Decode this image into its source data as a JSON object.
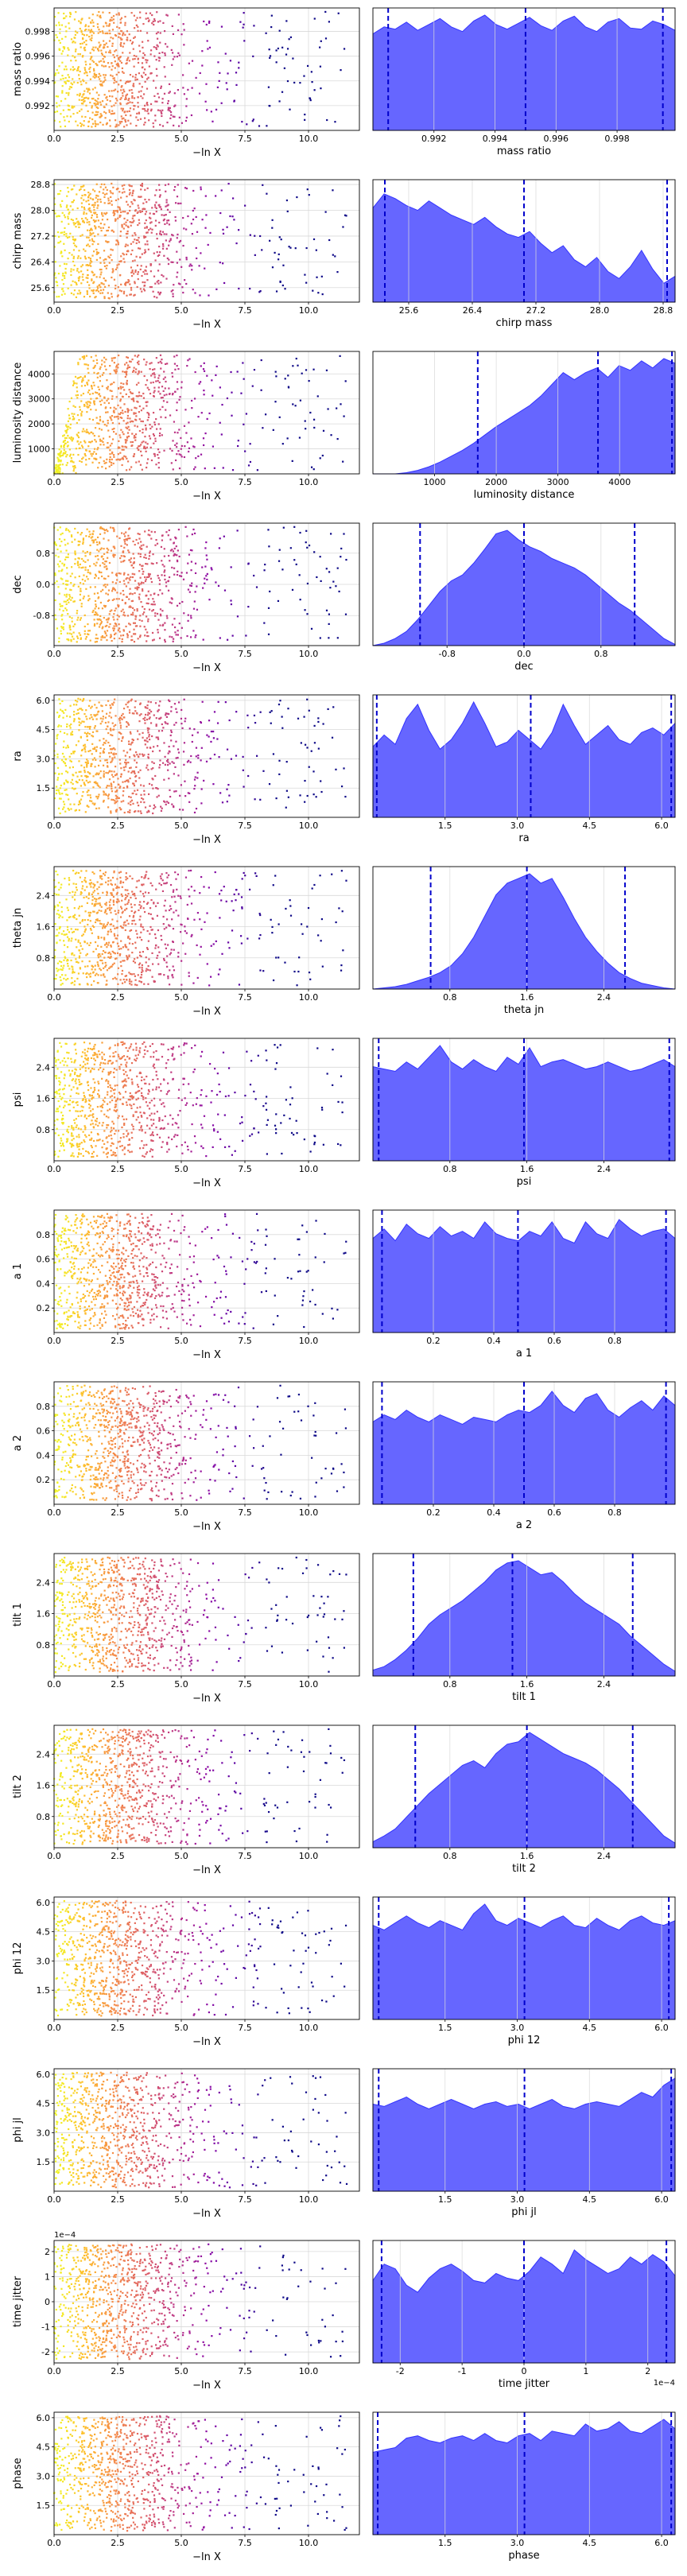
{
  "figure": {
    "scatter_xlabel": "−ln X",
    "colors": {
      "kde_fill": "#5555ff",
      "kde_edge": "#3333ff",
      "quantile_line": "#0000cc",
      "grid": "#d9d9d9"
    },
    "colormap": "plasma",
    "scatter_xlim": [
      0,
      12
    ],
    "scatter_xticks": [
      "0.0",
      "2.5",
      "5.0",
      "7.5",
      "10.0"
    ]
  },
  "chart_data": [
    {
      "type": "scatter+area",
      "param": "mass ratio",
      "ylim": [
        0.99,
        0.9999
      ],
      "yticks": [
        "0.992",
        "0.994",
        "0.996",
        "0.998"
      ],
      "xticks_kde": [
        "0.992",
        "0.994",
        "0.996",
        "0.998"
      ],
      "quantiles": [
        0.9905,
        0.995,
        0.9995
      ],
      "kde": [
        0.82,
        0.88,
        0.86,
        0.92,
        0.85,
        0.9,
        0.95,
        0.88,
        0.84,
        0.93,
        0.98,
        0.9,
        0.86,
        0.91,
        0.96,
        0.89,
        0.85,
        0.93,
        0.97,
        0.88,
        0.84,
        0.92,
        0.95,
        0.87,
        0.86,
        0.93,
        0.9,
        0.85
      ]
    },
    {
      "type": "scatter+area",
      "param": "chirp mass",
      "ylim": [
        25.15,
        28.95
      ],
      "yticks": [
        "25.6",
        "26.4",
        "27.2",
        "28.0",
        "28.8"
      ],
      "xticks_kde": [
        "25.6",
        "26.4",
        "27.2",
        "28.0",
        "28.8"
      ],
      "quantiles": [
        25.3,
        27.05,
        28.85
      ],
      "kde": [
        0.8,
        0.92,
        0.88,
        0.82,
        0.78,
        0.86,
        0.8,
        0.74,
        0.7,
        0.66,
        0.72,
        0.64,
        0.58,
        0.55,
        0.6,
        0.5,
        0.42,
        0.48,
        0.36,
        0.3,
        0.38,
        0.26,
        0.2,
        0.3,
        0.44,
        0.28,
        0.16,
        0.22
      ]
    },
    {
      "type": "scatter+area",
      "param": "luminosity distance",
      "ylim": [
        0,
        4900
      ],
      "yticks": [
        "1000",
        "2000",
        "3000",
        "4000"
      ],
      "xticks_kde": [
        "1000",
        "2000",
        "3000",
        "4000"
      ],
      "quantiles": [
        1700,
        3650,
        4850
      ],
      "kde": [
        0.0,
        0.0,
        0.0,
        0.01,
        0.03,
        0.06,
        0.1,
        0.15,
        0.2,
        0.26,
        0.33,
        0.4,
        0.46,
        0.52,
        0.58,
        0.66,
        0.76,
        0.86,
        0.8,
        0.86,
        0.9,
        0.82,
        0.92,
        0.88,
        0.96,
        0.9,
        0.98,
        0.94
      ]
    },
    {
      "type": "scatter+area",
      "param": "dec",
      "ylim": [
        -1.57,
        1.57
      ],
      "yticks": [
        "-0.8",
        "0.0",
        "0.8"
      ],
      "xticks_kde": [
        "-0.8",
        "0.0",
        "0.8"
      ],
      "quantiles": [
        -1.08,
        0.0,
        1.15
      ],
      "kde": [
        0.0,
        0.02,
        0.06,
        0.12,
        0.22,
        0.34,
        0.46,
        0.55,
        0.6,
        0.7,
        0.82,
        0.95,
        0.98,
        0.9,
        0.84,
        0.8,
        0.74,
        0.7,
        0.66,
        0.6,
        0.52,
        0.44,
        0.36,
        0.3,
        0.22,
        0.14,
        0.06,
        0.01
      ]
    },
    {
      "type": "scatter+area",
      "param": "ra",
      "ylim": [
        0,
        6.28
      ],
      "yticks": [
        "1.5",
        "3.0",
        "4.5",
        "6.0"
      ],
      "xticks_kde": [
        "1.5",
        "3.0",
        "4.5",
        "6.0"
      ],
      "quantiles": [
        0.08,
        3.28,
        6.2
      ],
      "kde": [
        0.6,
        0.7,
        0.62,
        0.84,
        0.96,
        0.74,
        0.58,
        0.66,
        0.8,
        0.98,
        0.8,
        0.6,
        0.64,
        0.74,
        0.66,
        0.58,
        0.72,
        0.96,
        0.78,
        0.62,
        0.7,
        0.78,
        0.66,
        0.62,
        0.72,
        0.76,
        0.7,
        0.8
      ]
    },
    {
      "type": "scatter+area",
      "param": "theta jn",
      "ylim": [
        0,
        3.14
      ],
      "yticks": [
        "0.8",
        "1.6",
        "2.4"
      ],
      "xticks_kde": [
        "0.8",
        "1.6",
        "2.4"
      ],
      "quantiles": [
        0.6,
        1.6,
        2.62
      ],
      "kde": [
        0.0,
        0.01,
        0.02,
        0.04,
        0.07,
        0.1,
        0.14,
        0.2,
        0.3,
        0.44,
        0.62,
        0.8,
        0.9,
        0.94,
        0.98,
        0.9,
        0.94,
        0.78,
        0.6,
        0.44,
        0.32,
        0.22,
        0.14,
        0.09,
        0.05,
        0.03,
        0.01,
        0.0
      ]
    },
    {
      "type": "scatter+area",
      "param": "psi",
      "ylim": [
        0,
        3.14
      ],
      "yticks": [
        "0.8",
        "1.6",
        "2.4"
      ],
      "xticks_kde": [
        "0.8",
        "1.6",
        "2.4"
      ],
      "quantiles": [
        0.06,
        1.57,
        3.08
      ],
      "kde": [
        0.8,
        0.78,
        0.76,
        0.84,
        0.78,
        0.88,
        0.98,
        0.84,
        0.78,
        0.86,
        0.8,
        0.76,
        0.88,
        0.82,
        0.96,
        0.8,
        0.84,
        0.86,
        0.82,
        0.78,
        0.8,
        0.84,
        0.8,
        0.76,
        0.78,
        0.82,
        0.86,
        0.8
      ]
    },
    {
      "type": "scatter+area",
      "param": "a 1",
      "ylim": [
        0,
        1.0
      ],
      "yticks": [
        "0.2",
        "0.4",
        "0.6",
        "0.8"
      ],
      "xticks_kde": [
        "0.2",
        "0.4",
        "0.6",
        "0.8"
      ],
      "quantiles": [
        0.03,
        0.48,
        0.97
      ],
      "kde": [
        0.8,
        0.88,
        0.78,
        0.92,
        0.84,
        0.8,
        0.9,
        0.82,
        0.86,
        0.8,
        0.94,
        0.84,
        0.8,
        0.78,
        0.86,
        0.82,
        0.94,
        0.8,
        0.76,
        0.94,
        0.84,
        0.8,
        0.96,
        0.88,
        0.82,
        0.86,
        0.88,
        0.8
      ]
    },
    {
      "type": "scatter+area",
      "param": "a 2",
      "ylim": [
        0,
        1.0
      ],
      "yticks": [
        "0.2",
        "0.4",
        "0.6",
        "0.8"
      ],
      "xticks_kde": [
        "0.2",
        "0.4",
        "0.6",
        "0.8"
      ],
      "quantiles": [
        0.03,
        0.5,
        0.97
      ],
      "kde": [
        0.7,
        0.76,
        0.72,
        0.8,
        0.74,
        0.7,
        0.76,
        0.72,
        0.68,
        0.74,
        0.72,
        0.7,
        0.76,
        0.8,
        0.78,
        0.84,
        0.96,
        0.84,
        0.78,
        0.9,
        0.94,
        0.8,
        0.74,
        0.82,
        0.88,
        0.8,
        0.92,
        0.84
      ]
    },
    {
      "type": "scatter+area",
      "param": "tilt 1",
      "ylim": [
        0,
        3.14
      ],
      "yticks": [
        "0.8",
        "1.6",
        "2.4"
      ],
      "xticks_kde": [
        "0.8",
        "1.6",
        "2.4"
      ],
      "quantiles": [
        0.42,
        1.45,
        2.7
      ],
      "kde": [
        0.05,
        0.08,
        0.14,
        0.22,
        0.32,
        0.44,
        0.52,
        0.58,
        0.64,
        0.72,
        0.8,
        0.9,
        0.96,
        0.98,
        0.92,
        0.86,
        0.88,
        0.8,
        0.7,
        0.62,
        0.56,
        0.5,
        0.44,
        0.34,
        0.26,
        0.18,
        0.1,
        0.04
      ]
    },
    {
      "type": "scatter+area",
      "param": "tilt 2",
      "ylim": [
        0,
        3.14
      ],
      "yticks": [
        "0.8",
        "1.6",
        "2.4"
      ],
      "xticks_kde": [
        "0.8",
        "1.6",
        "2.4"
      ],
      "quantiles": [
        0.44,
        1.6,
        2.7
      ],
      "kde": [
        0.05,
        0.1,
        0.16,
        0.26,
        0.36,
        0.46,
        0.54,
        0.62,
        0.7,
        0.74,
        0.68,
        0.8,
        0.88,
        0.9,
        0.98,
        0.92,
        0.86,
        0.8,
        0.76,
        0.72,
        0.66,
        0.58,
        0.5,
        0.4,
        0.3,
        0.2,
        0.1,
        0.04
      ]
    },
    {
      "type": "scatter+area",
      "param": "phi 12",
      "ylim": [
        0,
        6.28
      ],
      "yticks": [
        "1.5",
        "3.0",
        "4.5",
        "6.0"
      ],
      "xticks_kde": [
        "1.5",
        "3.0",
        "4.5",
        "6.0"
      ],
      "quantiles": [
        0.12,
        3.15,
        6.15
      ],
      "kde": [
        0.8,
        0.76,
        0.82,
        0.88,
        0.82,
        0.78,
        0.84,
        0.8,
        0.76,
        0.9,
        0.98,
        0.84,
        0.8,
        0.86,
        0.82,
        0.78,
        0.84,
        0.88,
        0.8,
        0.78,
        0.86,
        0.8,
        0.76,
        0.84,
        0.88,
        0.82,
        0.8,
        0.84
      ]
    },
    {
      "type": "scatter+area",
      "param": "phi jl",
      "ylim": [
        0,
        6.28
      ],
      "yticks": [
        "1.5",
        "3.0",
        "4.5",
        "6.0"
      ],
      "xticks_kde": [
        "1.5",
        "3.0",
        "4.5",
        "6.0"
      ],
      "quantiles": [
        0.12,
        3.15,
        6.2
      ],
      "kde": [
        0.74,
        0.72,
        0.76,
        0.8,
        0.74,
        0.7,
        0.74,
        0.78,
        0.74,
        0.7,
        0.74,
        0.76,
        0.72,
        0.74,
        0.7,
        0.74,
        0.78,
        0.72,
        0.7,
        0.74,
        0.76,
        0.74,
        0.72,
        0.78,
        0.84,
        0.8,
        0.9,
        0.96
      ]
    },
    {
      "type": "scatter+area",
      "param": "time jitter",
      "ylim": [
        -2.44,
        2.44
      ],
      "yticks": [
        "-2",
        "-1",
        "0",
        "1",
        "2"
      ],
      "xticks_kde": [
        "-2",
        "-1",
        "0",
        "1",
        "2"
      ],
      "quantiles": [
        -2.3,
        0.0,
        2.3
      ],
      "axis_multiplier": "1e−4",
      "kde": [
        0.7,
        0.84,
        0.8,
        0.66,
        0.6,
        0.72,
        0.8,
        0.84,
        0.78,
        0.7,
        0.68,
        0.76,
        0.72,
        0.7,
        0.78,
        0.9,
        0.84,
        0.76,
        0.96,
        0.88,
        0.82,
        0.76,
        0.8,
        0.9,
        0.84,
        0.92,
        0.86,
        0.74
      ]
    },
    {
      "type": "scatter+area",
      "param": "phase",
      "ylim": [
        0,
        6.28
      ],
      "yticks": [
        "1.5",
        "3.0",
        "4.5",
        "6.0"
      ],
      "xticks_kde": [
        "1.5",
        "3.0",
        "4.5",
        "6.0"
      ],
      "quantiles": [
        0.1,
        3.15,
        6.2
      ],
      "kde": [
        0.7,
        0.72,
        0.74,
        0.82,
        0.84,
        0.8,
        0.78,
        0.82,
        0.84,
        0.8,
        0.86,
        0.8,
        0.78,
        0.84,
        0.86,
        0.8,
        0.88,
        0.86,
        0.84,
        0.94,
        0.88,
        0.9,
        0.96,
        0.88,
        0.86,
        0.92,
        0.98,
        0.9
      ]
    }
  ]
}
